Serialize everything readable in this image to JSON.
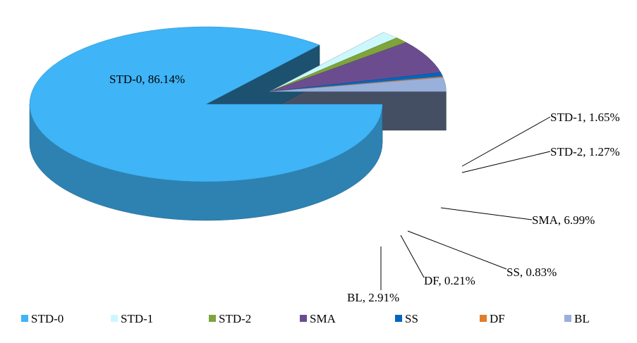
{
  "chart_data": {
    "type": "pie",
    "style": "3d-exploded",
    "categories": [
      "STD-0",
      "STD-1",
      "STD-2",
      "SMA",
      "SS",
      "DF",
      "BL"
    ],
    "values": [
      86.14,
      1.65,
      1.27,
      6.99,
      0.83,
      0.21,
      2.91
    ],
    "unit": "%",
    "data_labels": [
      "STD-0, 86.14%",
      "STD-1, 1.65%",
      "STD-2, 1.27%",
      "SMA, 6.99%",
      "SS, 0.83%",
      "DF, 0.21%",
      "BL, 2.91%"
    ],
    "colors": [
      "#3FB4F7",
      "#CCF8FD",
      "#7EA43A",
      "#6B4D8F",
      "#0366C1",
      "#E07D2B",
      "#99B0DB"
    ],
    "legend": {
      "position": "bottom",
      "entries": [
        "STD-0",
        "STD-1",
        "STD-2",
        "SMA",
        "SS",
        "DF",
        "BL"
      ]
    }
  }
}
